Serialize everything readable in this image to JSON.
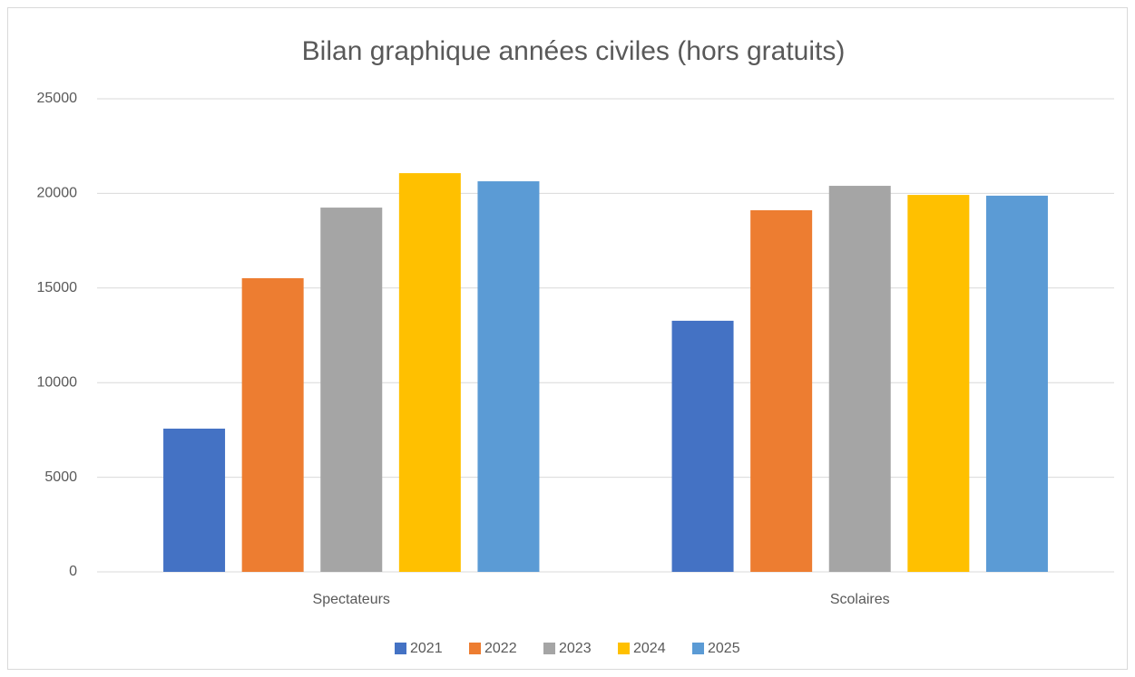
{
  "chart_data": {
    "type": "bar",
    "title": "Bilan graphique années civiles (hors gratuits)",
    "categories": [
      "Spectateurs",
      "Scolaires"
    ],
    "series": [
      {
        "name": "2021",
        "color": "#4472c4",
        "values": [
          7570,
          13270
        ]
      },
      {
        "name": "2022",
        "color": "#ed7d31",
        "values": [
          15520,
          19110
        ]
      },
      {
        "name": "2023",
        "color": "#a5a5a5",
        "values": [
          19250,
          20400
        ]
      },
      {
        "name": "2024",
        "color": "#ffc000",
        "values": [
          21070,
          19920
        ]
      },
      {
        "name": "2025",
        "color": "#5b9bd5",
        "values": [
          20640,
          19880
        ]
      }
    ],
    "ylim": [
      0,
      25000
    ],
    "yticks": [
      0,
      5000,
      10000,
      15000,
      20000,
      25000
    ],
    "grid": true,
    "legend": "bottom"
  }
}
